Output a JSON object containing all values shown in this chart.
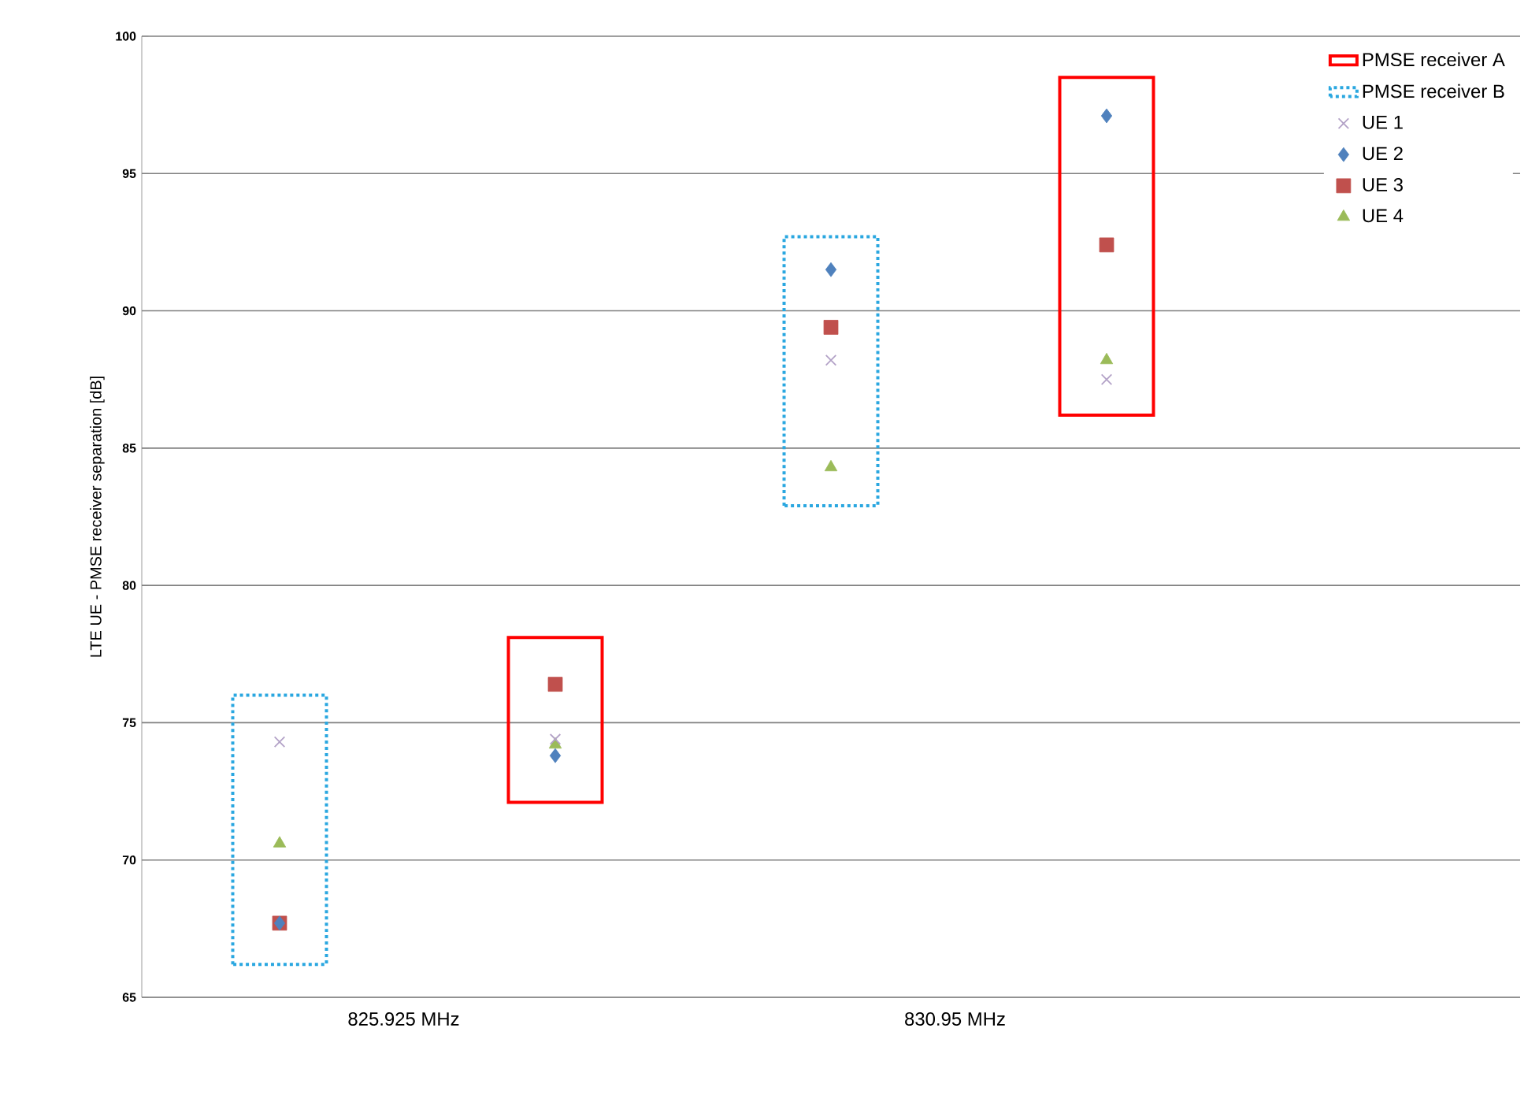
{
  "chart_data": {
    "type": "scatter",
    "ylabel": "LTE UE - PMSE receiver separation [dB]",
    "categories": [
      null,
      null,
      null,
      null,
      null
    ],
    "annotations": [
      "825.925 MHz",
      "830.95 MHz"
    ],
    "ylim": [
      65,
      100
    ],
    "yticks": [
      65,
      70,
      75,
      80,
      85,
      90,
      95,
      100
    ],
    "grid": "y",
    "legend": "top right",
    "series": [
      {
        "name": "PMSE receiver A",
        "type": "bar",
        "line_style": "solid",
        "color": "#ff0000",
        "base": [
          null,
          72.1,
          null,
          86.2,
          null
        ],
        "values": [
          null,
          6.0,
          null,
          12.3,
          null
        ]
      },
      {
        "name": "PMSE receiver  B",
        "type": "bar",
        "line_style": "dotted",
        "color": "#2aa7e0",
        "base": [
          66.2,
          null,
          82.9,
          null,
          null
        ],
        "values": [
          9.8,
          null,
          9.8,
          null,
          null
        ]
      },
      {
        "name": "UE 1",
        "marker": "cross",
        "color": "#b3a2c7",
        "values": [
          74.3,
          74.4,
          88.2,
          87.5,
          null
        ]
      },
      {
        "name": "UE 2",
        "marker": "diamond",
        "color": "#4f81bd",
        "values": [
          67.7,
          73.8,
          91.5,
          97.1,
          null
        ]
      },
      {
        "name": "UE 3",
        "marker": "square",
        "color": "#c0504d",
        "values": [
          67.7,
          76.4,
          89.4,
          92.4,
          null
        ]
      },
      {
        "name": "UE 4",
        "marker": "triangle",
        "color": "#9bbb59",
        "values": [
          70.6,
          74.2,
          84.3,
          88.2,
          null
        ]
      }
    ]
  }
}
